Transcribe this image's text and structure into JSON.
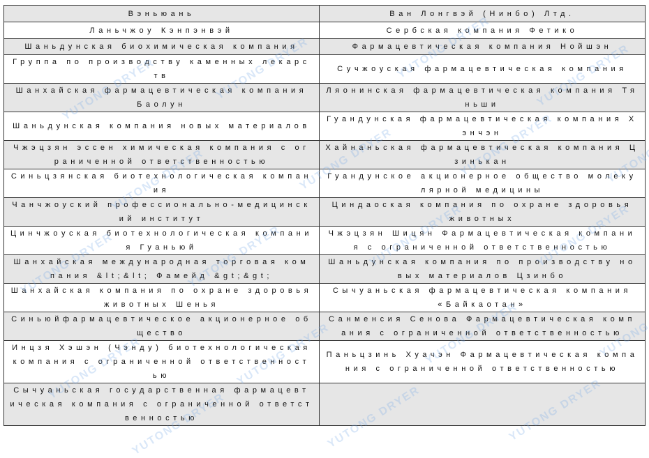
{
  "table": {
    "header": [
      "Вэньюань",
      "Ван Лонгвэй (Нинбо) Лтд."
    ],
    "rows": [
      [
        "Ланьчжоу Кэнпэнвэй",
        "Сербская компания Фетико"
      ],
      [
        "Шаньдунская биохимическая компания",
        "Фармацевтическая компания Нойшэн"
      ],
      [
        "Группа по производству каменных лекарств",
        "Сучжоуская фармацевтическая компания"
      ],
      [
        "Шанхайская фармацевтическая компания Баолун",
        "Ляонинская фармацевтическая компания Тяньши"
      ],
      [
        "Шаньдунская компания новых материалов",
        "Гуандунская фармацевтическая компания Хэнчэн"
      ],
      [
        "Чжэцзян эссен химическая компания с ограниченной ответственностью",
        "Хайнаньская фармацевтическая компания Цзинькан"
      ],
      [
        "Синьцзянская биотехнологическая компания",
        "Гуандунское акционерное общество молекулярной медицины"
      ],
      [
        "Чанчжоуский профессионально-медицинский институт",
        "Циндаоская компания по охране здоровья животных"
      ],
      [
        "Цинчжоуская биотехнологическая компания Гуаньюй",
        "Чжэцзян Шицян Фармацевтическая компания с ограниченной ответственностью"
      ],
      [
        "Шанхайская международная торговая компания &lt;&lt; Фамейд &gt;&gt;",
        "Шаньдунская компания по производству новых материалов Цзинбо"
      ],
      [
        "Шанхайская компания по охране здоровья животных Шенья",
        "Сычуаньская фармацевтическая компания «Байкаотан»"
      ],
      [
        "Синьюйфармацевтическое акционерное общество",
        "Санменсия Сенова Фармацевтическая компания с ограниченной ответственностью"
      ],
      [
        "Инцзя Хэшэн (Чэнду) биотехнологическая компания с ограниченной ответственностью",
        "Паньцзинь Хуачэн Фармацевтическая компания с ограниченной ответственностью"
      ],
      [
        "Сычуаньская государственная фармацевтическая компания с ограниченной ответственностью",
        ""
      ]
    ]
  },
  "watermark": "YUTONG DRYER",
  "colors": {
    "row_shade": "#e6e6e6",
    "border": "#333333",
    "watermark": "#78aae6"
  }
}
